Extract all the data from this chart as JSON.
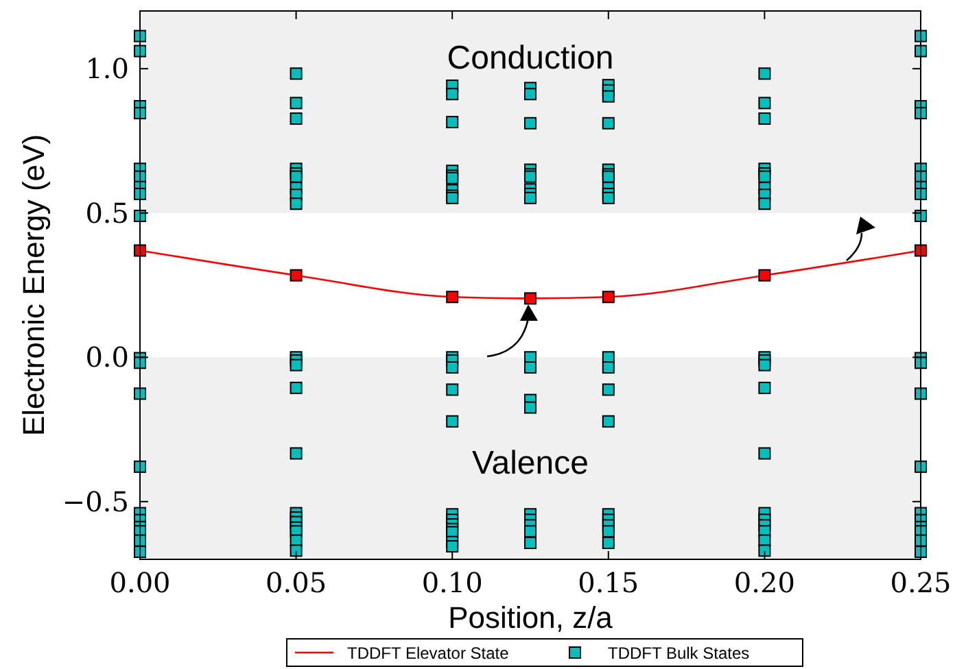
{
  "chart_data": {
    "type": "scatter",
    "xlabel": "Position, z/a",
    "ylabel": "Electronic Energy (eV)",
    "xlim": [
      0,
      0.25
    ],
    "ylim": [
      -0.7,
      1.2
    ],
    "xticks": [
      {
        "value": 0,
        "label": "0.00"
      },
      {
        "value": 0.05,
        "label": "0.05"
      },
      {
        "value": 0.1,
        "label": "0.10"
      },
      {
        "value": 0.15,
        "label": "0.15"
      },
      {
        "value": 0.2,
        "label": "0.20"
      },
      {
        "value": 0.25,
        "label": "0.25"
      }
    ],
    "yticks": [
      {
        "value": -0.5,
        "label": "−0.5"
      },
      {
        "value": 0,
        "label": "0.0"
      },
      {
        "value": 0.5,
        "label": "0.5"
      },
      {
        "value": 1,
        "label": "1.0"
      }
    ],
    "bands": [
      {
        "axis": "y",
        "from": 0.5,
        "to": 1.2,
        "label": "Conduction",
        "color": "#f0f0f0"
      },
      {
        "axis": "y",
        "from": -0.7,
        "to": 0,
        "label": "Valence",
        "color": "#f0f0f0"
      }
    ],
    "legend": "bottom",
    "grid": false,
    "series": [
      {
        "name": "TDDFT Elevator State",
        "type": "line",
        "color": "#ff0000",
        "marker": "square",
        "x": [
          0,
          0.05,
          0.1,
          0.125,
          0.15,
          0.2,
          0.25
        ],
        "values": [
          0.37,
          0.284,
          0.209,
          0.204,
          0.209,
          0.284,
          0.37
        ]
      },
      {
        "name": "TDDFT Bulk States",
        "color": "#00bfbf",
        "marker": "square",
        "x": [
          0,
          0,
          0,
          0,
          0,
          0,
          0,
          0,
          0,
          0,
          0,
          0,
          0,
          0,
          0,
          0,
          0,
          0,
          0,
          0.05,
          0.05,
          0.05,
          0.05,
          0.05,
          0.05,
          0.05,
          0.05,
          0.05,
          0.05,
          0.05,
          0.05,
          0.05,
          0.05,
          0.05,
          0.05,
          0.05,
          0.05,
          0.05,
          0.05,
          0.05,
          0.1,
          0.1,
          0.1,
          0.1,
          0.1,
          0.1,
          0.1,
          0.1,
          0.1,
          0.1,
          0.1,
          0.1,
          0.1,
          0.1,
          0.1,
          0.1,
          0.1,
          0.1,
          0.1,
          0.1,
          0.1,
          0.125,
          0.125,
          0.125,
          0.125,
          0.125,
          0.125,
          0.125,
          0.125,
          0.125,
          0.125,
          0.125,
          0.125,
          0.125,
          0.125,
          0.125,
          0.125,
          0.125,
          0.125,
          0.15,
          0.15,
          0.15,
          0.15,
          0.15,
          0.15,
          0.15,
          0.15,
          0.15,
          0.15,
          0.15,
          0.15,
          0.15,
          0.15,
          0.15,
          0.15,
          0.15,
          0.15,
          0.15,
          0.2,
          0.2,
          0.2,
          0.2,
          0.2,
          0.2,
          0.2,
          0.2,
          0.2,
          0.2,
          0.2,
          0.2,
          0.2,
          0.2,
          0.2,
          0.2,
          0.2,
          0.2,
          0.2,
          0.2,
          0.25,
          0.25,
          0.25,
          0.25,
          0.25,
          0.25,
          0.25,
          0.25,
          0.25,
          0.25,
          0.25,
          0.25,
          0.25,
          0.25,
          0.25,
          0.25,
          0.25,
          0.25,
          0.25
        ],
        "values": [
          1.113,
          1.061,
          0.87,
          0.846,
          0.653,
          0.626,
          0.59,
          0.566,
          0.49,
          -0.003,
          -0.019,
          -0.126,
          -0.379,
          -0.54,
          -0.564,
          -0.588,
          -0.603,
          -0.635,
          -0.674,
          0.983,
          0.881,
          0.827,
          0.653,
          0.637,
          0.626,
          0.587,
          0.563,
          0.532,
          0,
          -0.011,
          -0.027,
          -0.106,
          -0.333,
          -0.54,
          -0.555,
          -0.571,
          -0.59,
          -0.603,
          -0.635,
          -0.67,
          0.941,
          0.912,
          0.815,
          0.646,
          0.629,
          0.621,
          0.579,
          0.56,
          0.552,
          0,
          -0.011,
          -0.035,
          -0.112,
          -0.222,
          -0.544,
          -0.563,
          -0.579,
          -0.595,
          -0.606,
          -0.64,
          -0.655,
          0.933,
          0.912,
          0.811,
          0.65,
          0.634,
          0.626,
          0.582,
          0.566,
          0.552,
          0,
          -0.035,
          -0.148,
          -0.174,
          -0.544,
          -0.563,
          -0.582,
          -0.603,
          -0.643,
          0.943,
          0.925,
          0.904,
          0.811,
          0.65,
          0.634,
          0.626,
          0.587,
          0.566,
          0.552,
          0,
          -0.035,
          -0.112,
          -0.222,
          -0.544,
          -0.563,
          -0.582,
          -0.603,
          -0.643,
          0.983,
          0.881,
          0.827,
          0.653,
          0.637,
          0.626,
          0.587,
          0.563,
          0.532,
          0,
          -0.011,
          -0.027,
          -0.106,
          -0.333,
          -0.54,
          -0.563,
          -0.582,
          -0.603,
          -0.635,
          -0.67,
          1.113,
          1.061,
          0.87,
          0.846,
          0.653,
          0.626,
          0.59,
          0.566,
          0.49,
          -0.003,
          -0.019,
          -0.126,
          -0.379,
          -0.54,
          -0.564,
          -0.588,
          -0.603,
          -0.635,
          -0.674
        ]
      }
    ]
  }
}
